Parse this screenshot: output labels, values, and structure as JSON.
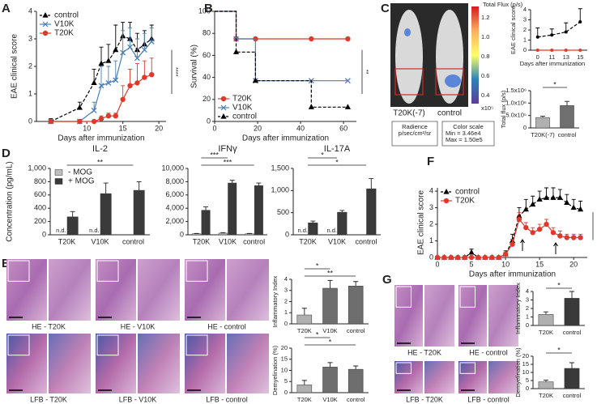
{
  "panel_labels": [
    "A",
    "B",
    "C",
    "D",
    "E",
    "F",
    "G"
  ],
  "panel_C": {
    "flux_label": "Total Flux (p/s)",
    "colorbar_ticks": [
      "1.2",
      "1.0",
      "0.8",
      "0.6",
      "0.4"
    ],
    "colorbar_unit": "x10⁵",
    "mouse_labels": [
      "T20K(-7)",
      "control"
    ],
    "boxes": [
      [
        "Radience",
        "p/sec/cm²/sr"
      ],
      [
        "Color scale",
        "Min = 3.46e4",
        "Max = 1.50e5"
      ]
    ]
  },
  "panel_E": {
    "captions": [
      "HE - T20K",
      "HE - V10K",
      "HE - control",
      "LFB - T20K",
      "LFB - V10K",
      "LFB - control"
    ]
  },
  "panel_G": {
    "captions": [
      "HE - T20K",
      "HE - control",
      "LFB - T20K",
      "LFB - control"
    ]
  },
  "chart_data": [
    {
      "type": "line",
      "ylabel": "EAE clinical score",
      "xlabel": "Days after immunization",
      "x": [
        5,
        9,
        11,
        12,
        13,
        14,
        15,
        16,
        17,
        18,
        19
      ],
      "xlim": [
        3,
        21
      ],
      "xticks": [
        10,
        15,
        20
      ],
      "ylim": [
        0,
        4
      ],
      "yticks": [
        0,
        1,
        2,
        3,
        4
      ],
      "legend": "upper left",
      "significance": [
        {
          "label": "****"
        }
      ],
      "series": [
        {
          "name": "control",
          "color": "#000000",
          "marker": "triangle",
          "dash": true,
          "values": [
            0,
            0.5,
            1.4,
            2.1,
            2.2,
            2.6,
            3.1,
            3.0,
            2.6,
            2.8,
            3.0
          ],
          "errors": [
            0.1,
            0.2,
            0.5,
            0.6,
            0.6,
            0.9,
            0.5,
            0.6,
            0.6,
            0.5,
            0.5
          ]
        },
        {
          "name": "V10K",
          "color": "#4a7fb5",
          "marker": "x",
          "dash": false,
          "values": [
            0,
            0,
            0.4,
            1.3,
            1.4,
            1.5,
            2.5,
            2.7,
            2.3,
            2.6,
            2.9
          ],
          "errors": [
            0,
            0,
            0.3,
            0.7,
            0.6,
            0.7,
            0.8,
            0.7,
            0.7,
            0.6,
            0.5
          ]
        },
        {
          "name": "T20K",
          "color": "#e0392b",
          "marker": "circle",
          "dash": false,
          "values": [
            0,
            0,
            0,
            0.1,
            0.2,
            0.2,
            0.8,
            1.3,
            1.4,
            1.6,
            1.7
          ],
          "errors": [
            0,
            0,
            0,
            0.1,
            0.1,
            0.1,
            0.5,
            0.6,
            0.7,
            0.6,
            0.6
          ]
        }
      ]
    },
    {
      "type": "step",
      "ylabel": "Survival (%)",
      "xlabel": "Days after immunization",
      "x": [
        0,
        10,
        19,
        45,
        62
      ],
      "xlim": [
        0,
        66
      ],
      "xticks": [
        0,
        20,
        40,
        60
      ],
      "ylim": [
        0,
        100
      ],
      "yticks": [
        0,
        20,
        40,
        60,
        80,
        100
      ],
      "legend": "lower left",
      "significance": [
        {
          "label": "**"
        }
      ],
      "series": [
        {
          "name": "T20K",
          "color": "#e0392b",
          "marker": "circle",
          "dash": false,
          "values": [
            100,
            75,
            75,
            75,
            75
          ]
        },
        {
          "name": "V10K",
          "color": "#4a7fb5",
          "marker": "x",
          "dash": false,
          "values": [
            100,
            75,
            37,
            37,
            37
          ]
        },
        {
          "name": "control",
          "color": "#000000",
          "marker": "triangle",
          "dash": true,
          "values": [
            100,
            63,
            37,
            13,
            13
          ]
        }
      ]
    },
    {
      "type": "line",
      "ylabel": "EAE clinical score",
      "xlabel": "Days after immunization",
      "categories": [
        "0",
        "11",
        "13",
        "15"
      ],
      "ylim": [
        0,
        4
      ],
      "yticks": [
        0,
        1,
        2,
        3,
        4
      ],
      "series": [
        {
          "color": "#000000",
          "marker": "dot",
          "dash": true,
          "values": [
            1.3,
            1.5,
            1.8,
            2.8
          ],
          "errors": [
            0.9,
            0.6,
            0.9,
            1.3
          ]
        },
        {
          "color": "#e0392b",
          "marker": "dot",
          "dash": false,
          "values": [
            0,
            0,
            0,
            0
          ]
        }
      ]
    },
    {
      "type": "bar",
      "ylabel": "Total flux (p/s)",
      "categories": [
        "T20K(-7)",
        "control"
      ],
      "ylim": [
        0,
        1500000
      ],
      "yticks": [
        0,
        {
          "value": 500000,
          "label": "5.0x10⁵"
        },
        {
          "value": 1000000,
          "label": "1.0x10⁶"
        },
        {
          "value": 1500000,
          "label": "1.5x10⁶"
        }
      ],
      "significance": [
        {
          "label": "*",
          "pair": [
            0,
            1
          ]
        }
      ],
      "series": [
        {
          "colors": [
            "#b0b0b0",
            "#707070"
          ],
          "values": [
            420000,
            900000
          ],
          "errors": [
            50000,
            170000
          ]
        }
      ]
    },
    {
      "type": "bar",
      "title": "IL-2",
      "ylabel": "Concentration (pg/mL)",
      "categories": [
        "T20K",
        "V10K",
        "control"
      ],
      "ylim": [
        0,
        1000
      ],
      "yticks": [
        0,
        200,
        400,
        600,
        800,
        {
          "value": 1000,
          "label": "1,000"
        }
      ],
      "legend": "upper left",
      "significance": [
        {
          "label": "**",
          "pair": [
            0,
            2
          ]
        }
      ],
      "series": [
        {
          "name": "- MOG",
          "color": "#bdbdbd",
          "values": [
            null,
            null,
            null
          ],
          "value_labels": [
            "n.d.",
            "n.d.",
            null
          ]
        },
        {
          "name": "+ MOG",
          "color": "#3a3a3a",
          "values": [
            270,
            620,
            670
          ],
          "errors": [
            80,
            160,
            130
          ]
        }
      ]
    },
    {
      "type": "bar",
      "title": "IFNγ",
      "categories": [
        "T20K",
        "V10K",
        "control"
      ],
      "ylim": [
        0,
        10000
      ],
      "yticks": [
        0,
        {
          "value": 2000,
          "label": "2,000"
        },
        {
          "value": 4000,
          "label": "4,000"
        },
        {
          "value": 6000,
          "label": "6,000"
        },
        {
          "value": 8000,
          "label": "8,000"
        },
        {
          "value": 10000,
          "label": "10,000"
        }
      ],
      "significance": [
        {
          "label": "***",
          "pair": [
            0,
            2
          ]
        },
        {
          "label": "***",
          "pair": [
            0,
            1
          ]
        }
      ],
      "series": [
        {
          "name": "- MOG",
          "color": "#bdbdbd",
          "values": [
            150,
            250,
            150
          ],
          "errors": [
            50,
            80,
            50
          ]
        },
        {
          "name": "+ MOG",
          "color": "#3a3a3a",
          "values": [
            3700,
            7800,
            7400
          ],
          "errors": [
            500,
            400,
            400
          ]
        }
      ]
    },
    {
      "type": "bar",
      "title": "IL-17A",
      "categories": [
        "T20K",
        "V10K",
        "control"
      ],
      "ylim": [
        0,
        1500
      ],
      "yticks": [
        0,
        500,
        {
          "value": 1000,
          "label": "1,000"
        },
        {
          "value": 1500,
          "label": "1,500"
        }
      ],
      "significance": [
        {
          "label": "*",
          "pair": [
            0,
            2
          ]
        },
        {
          "label": "*",
          "pair": [
            0,
            1
          ]
        }
      ],
      "series": [
        {
          "name": "- MOG",
          "color": "#bdbdbd",
          "values": [
            null,
            null,
            null
          ],
          "value_labels": [
            "n.d.",
            "n.d.",
            null
          ]
        },
        {
          "name": "+ MOG",
          "color": "#3a3a3a",
          "values": [
            270,
            510,
            1040
          ],
          "errors": [
            40,
            40,
            230
          ]
        }
      ]
    },
    {
      "type": "line",
      "ylabel": "EAE clinical score",
      "xlabel": "Days after immunization",
      "x": [
        0,
        1,
        2,
        3,
        4,
        5,
        6,
        7,
        8,
        9,
        10,
        11,
        12,
        13,
        14,
        15,
        16,
        17,
        18,
        19,
        20,
        21
      ],
      "xlim": [
        0,
        22
      ],
      "xticks": [
        0,
        5,
        10,
        15,
        20
      ],
      "ylim": [
        0,
        4.2
      ],
      "yticks": [
        0,
        1,
        2,
        3,
        4
      ],
      "legend": "upper left",
      "significance": [
        {
          "label": "****"
        }
      ],
      "series": [
        {
          "name": "control",
          "color": "#000000",
          "marker": "triangle",
          "dash": true,
          "values": [
            0,
            0,
            0,
            0,
            0,
            0.3,
            0,
            0,
            0,
            0,
            0.2,
            1.0,
            2.5,
            2.9,
            3.2,
            3.5,
            3.6,
            3.6,
            3.6,
            3.3,
            3.0,
            2.9
          ],
          "errors": [
            0,
            0,
            0,
            0,
            0,
            0.2,
            0,
            0,
            0,
            0,
            0.2,
            0.4,
            0.5,
            0.6,
            0.5,
            0.5,
            0.6,
            0.6,
            0.5,
            0.5,
            0.5,
            0.5
          ]
        },
        {
          "name": "T20K",
          "color": "#e0392b",
          "marker": "circle",
          "dash": false,
          "values": [
            0,
            0,
            0,
            0,
            0,
            0,
            0,
            0,
            0,
            0,
            0.2,
            0.8,
            2.3,
            1.8,
            1.5,
            1.7,
            2.0,
            1.5,
            1.3,
            1.2,
            1.2,
            1.2
          ],
          "errors": [
            0,
            0,
            0,
            0,
            0,
            0,
            0,
            0,
            0,
            0,
            0.1,
            0.3,
            0.4,
            0.3,
            0.3,
            0.3,
            0.3,
            0.3,
            0.3,
            0.2,
            0.2,
            0.2
          ]
        }
      ]
    },
    {
      "type": "bar",
      "ylabel": "Inflammatory Index",
      "categories": [
        "T20K",
        "V10K",
        "control"
      ],
      "ylim": [
        0,
        4
      ],
      "yticks": [
        0,
        1,
        2,
        3,
        4
      ],
      "significance": [
        {
          "label": "**",
          "pair": [
            0,
            2
          ]
        },
        {
          "label": "*",
          "pair": [
            0,
            1
          ]
        }
      ],
      "series": [
        {
          "colors": [
            "#b0b0b0",
            "#6e6e6e",
            "#6e6e6e"
          ],
          "values": [
            0.8,
            3.2,
            3.4
          ],
          "errors": [
            0.6,
            0.7,
            0.4
          ]
        }
      ]
    },
    {
      "type": "bar",
      "ylabel": "Demyelination (%)",
      "categories": [
        "T20K",
        "V10K",
        "control"
      ],
      "ylim": [
        0,
        20
      ],
      "yticks": [
        0,
        5,
        10,
        15,
        20
      ],
      "significance": [
        {
          "label": "*",
          "pair": [
            0,
            2
          ]
        },
        {
          "label": "*",
          "pair": [
            0,
            1
          ]
        }
      ],
      "series": [
        {
          "colors": [
            "#b0b0b0",
            "#6e6e6e",
            "#6e6e6e"
          ],
          "values": [
            3.5,
            11.5,
            10.5
          ],
          "errors": [
            2,
            2,
            1.5
          ]
        }
      ]
    },
    {
      "type": "bar",
      "ylabel": "Inflammatory Index",
      "categories": [
        "T20K",
        "control"
      ],
      "ylim": [
        0,
        4
      ],
      "yticks": [
        0,
        1,
        2,
        3,
        4
      ],
      "significance": [
        {
          "label": "*",
          "pair": [
            0,
            1
          ]
        }
      ],
      "series": [
        {
          "colors": [
            "#b0b0b0",
            "#3a3a3a"
          ],
          "values": [
            1.3,
            3.2
          ],
          "errors": [
            0.3,
            0.8
          ]
        }
      ]
    },
    {
      "type": "bar",
      "ylabel": "Demyelination (%)",
      "categories": [
        "T20K",
        "control"
      ],
      "ylim": [
        0,
        20
      ],
      "yticks": [
        0,
        5,
        10,
        15,
        20
      ],
      "significance": [
        {
          "label": "*",
          "pair": [
            0,
            1
          ]
        }
      ],
      "series": [
        {
          "colors": [
            "#b0b0b0",
            "#3a3a3a"
          ],
          "values": [
            4.2,
            12.5
          ],
          "errors": [
            1,
            3.5
          ]
        }
      ]
    }
  ]
}
